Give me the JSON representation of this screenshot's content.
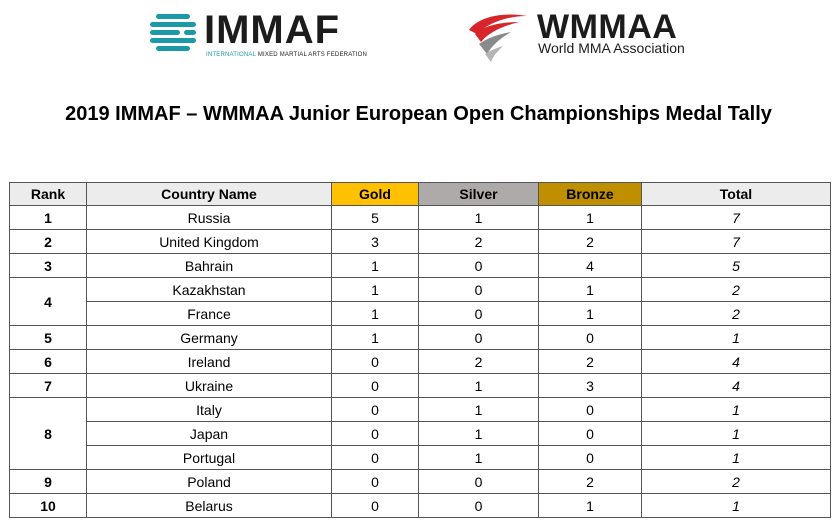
{
  "logos": {
    "left": {
      "name": "IMMAF",
      "subtitle_highlight": "INTERNATIONAL",
      "subtitle_rest": " MIXED MARTIAL ARTS FEDERATION",
      "icon": "immaf-stripes-logo"
    },
    "right": {
      "name": "WMMAA",
      "subtitle": "World MMA Association",
      "icon": "wmmaa-swoosh-logo",
      "accent": "#d7262b"
    }
  },
  "title": "2019 IMMAF – WMMAA Junior European Open Championships Medal Tally",
  "table": {
    "headers": {
      "rank": "Rank",
      "country": "Country Name",
      "gold": "Gold",
      "silver": "Silver",
      "bronze": "Bronze",
      "total": "Total"
    },
    "colors": {
      "gold": "#ffc000",
      "silver": "#aeaaaa",
      "bronze": "#bf8f00"
    },
    "rows": [
      {
        "rank": "1",
        "country": "Russia",
        "gold": "5",
        "silver": "1",
        "bronze": "1",
        "total": "7"
      },
      {
        "rank": "2",
        "country": "United Kingdom",
        "gold": "3",
        "silver": "2",
        "bronze": "2",
        "total": "7"
      },
      {
        "rank": "3",
        "country": "Bahrain",
        "gold": "1",
        "silver": "0",
        "bronze": "4",
        "total": "5"
      },
      {
        "rank": "4",
        "country": "Kazakhstan",
        "gold": "1",
        "silver": "0",
        "bronze": "1",
        "total": "2"
      },
      {
        "rank": "",
        "country": "France",
        "gold": "1",
        "silver": "0",
        "bronze": "1",
        "total": "2"
      },
      {
        "rank": "5",
        "country": "Germany",
        "gold": "1",
        "silver": "0",
        "bronze": "0",
        "total": "1"
      },
      {
        "rank": "6",
        "country": "Ireland",
        "gold": "0",
        "silver": "2",
        "bronze": "2",
        "total": "4"
      },
      {
        "rank": "7",
        "country": "Ukraine",
        "gold": "0",
        "silver": "1",
        "bronze": "3",
        "total": "4"
      },
      {
        "rank": "8",
        "country": "Italy",
        "gold": "0",
        "silver": "1",
        "bronze": "0",
        "total": "1"
      },
      {
        "rank": "",
        "country": "Japan",
        "gold": "0",
        "silver": "1",
        "bronze": "0",
        "total": "1"
      },
      {
        "rank": "",
        "country": "Portugal",
        "gold": "0",
        "silver": "1",
        "bronze": "0",
        "total": "1"
      },
      {
        "rank": "9",
        "country": "Poland",
        "gold": "0",
        "silver": "0",
        "bronze": "2",
        "total": "2"
      },
      {
        "rank": "10",
        "country": "Belarus",
        "gold": "0",
        "silver": "0",
        "bronze": "1",
        "total": "1"
      }
    ]
  }
}
